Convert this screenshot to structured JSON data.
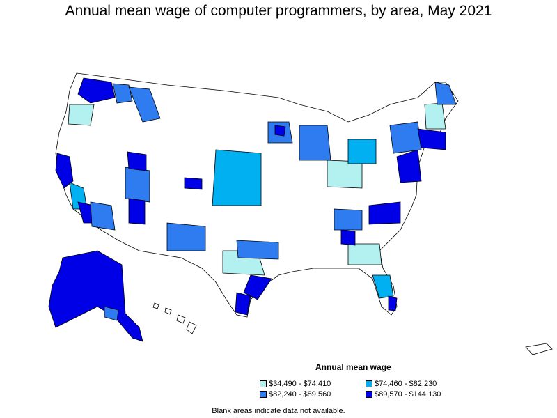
{
  "title": "Annual mean wage of computer programmers, by area, May 2021",
  "legend": {
    "title": "Annual mean wage",
    "items": [
      {
        "label": "$34,490 - $74,410",
        "color": "#b3f0f0"
      },
      {
        "label": "$74,460 - $82,230",
        "color": "#00b0f0"
      },
      {
        "label": "$82,240 - $89,560",
        "color": "#2e7cf0"
      },
      {
        "label": "$89,570 - $144,130",
        "color": "#0000e6"
      }
    ]
  },
  "note": "Blank areas indicate data not available."
}
